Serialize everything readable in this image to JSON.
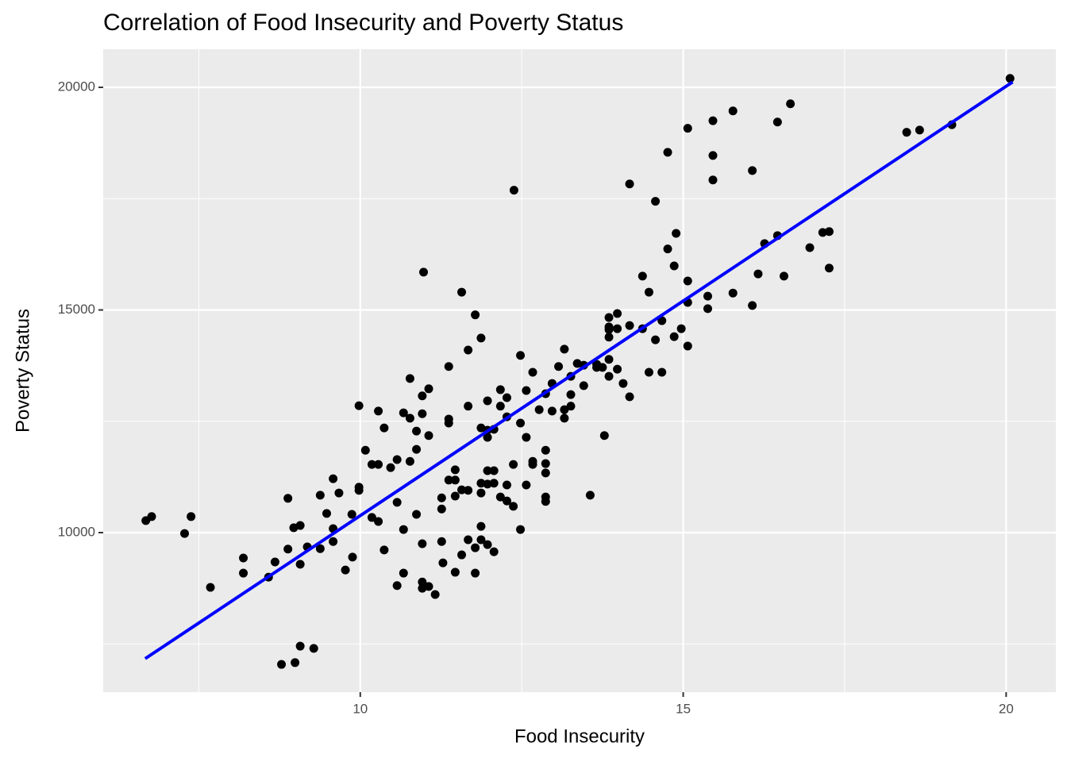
{
  "chart_data": {
    "type": "scatter",
    "title": "Correlation of Food Insecurity and Poverty Status",
    "x_label": "Food Insecurity",
    "y_label": "Poverty Status",
    "xlim": [
      6.02,
      20.77
    ],
    "ylim": [
      6417,
      20856
    ],
    "xticks": [
      10,
      15,
      20
    ],
    "yticks": [
      10000,
      15000,
      20000
    ],
    "x_minor_ticks": [
      7.5,
      12.5,
      17.5
    ],
    "y_minor_ticks": [
      7500,
      12500,
      17500
    ],
    "grid": true,
    "color": "#000000",
    "x": [
      6.68,
      6.77,
      7.28,
      7.38,
      7.68,
      8.19,
      8.19,
      8.58,
      8.68,
      8.78,
      8.88,
      8.88,
      8.97,
      8.99,
      9.07,
      9.07,
      9.07,
      9.18,
      9.28,
      9.38,
      9.38,
      9.48,
      9.58,
      9.58,
      9.58,
      9.67,
      9.77,
      9.87,
      9.88,
      9.98,
      9.98,
      9.98,
      10.08,
      10.18,
      10.18,
      10.28,
      10.28,
      10.28,
      10.37,
      10.37,
      10.47,
      10.57,
      10.57,
      10.57,
      10.67,
      10.67,
      10.67,
      10.77,
      10.77,
      10.77,
      10.87,
      10.87,
      10.87,
      10.96,
      10.96,
      10.96,
      10.96,
      10.96,
      10.98,
      11.06,
      11.06,
      11.06,
      11.16,
      11.26,
      11.26,
      11.26,
      11.28,
      11.37,
      11.37,
      11.37,
      11.37,
      11.47,
      11.47,
      11.47,
      11.47,
      11.57,
      11.57,
      11.57,
      11.67,
      11.67,
      11.67,
      11.67,
      11.78,
      11.78,
      11.78,
      11.87,
      11.87,
      11.87,
      11.87,
      11.87,
      11.87,
      11.97,
      11.97,
      11.97,
      11.97,
      11.97,
      11.97,
      12.07,
      12.07,
      12.07,
      12.07,
      12.17,
      12.17,
      12.17,
      12.27,
      12.27,
      12.27,
      12.27,
      12.37,
      12.37,
      12.38,
      12.48,
      12.48,
      12.48,
      12.57,
      12.57,
      12.57,
      12.67,
      12.67,
      12.67,
      12.77,
      12.87,
      12.87,
      12.87,
      12.87,
      12.87,
      12.87,
      12.97,
      12.97,
      13.07,
      13.16,
      13.16,
      13.16,
      13.26,
      13.26,
      13.26,
      13.36,
      13.46,
      13.46,
      13.56,
      13.66,
      13.66,
      13.75,
      13.78,
      13.85,
      13.85,
      13.85,
      13.85,
      13.85,
      13.85,
      13.98,
      13.98,
      13.98,
      14.07,
      14.17,
      14.17,
      14.17,
      14.37,
      14.37,
      14.47,
      14.47,
      14.57,
      14.57,
      14.67,
      14.67,
      14.76,
      14.76,
      14.86,
      14.86,
      14.89,
      14.97,
      15.07,
      15.07,
      15.07,
      15.07,
      15.38,
      15.38,
      15.46,
      15.46,
      15.46,
      15.77,
      15.77,
      16.07,
      16.07,
      16.16,
      16.26,
      16.46,
      16.46,
      16.56,
      16.66,
      16.96,
      17.16,
      17.26,
      17.26,
      18.46,
      18.66,
      19.16,
      20.06
    ],
    "values": [
      10270,
      10360,
      9980,
      10360,
      8770,
      9430,
      9090,
      9000,
      9340,
      7040,
      10770,
      9630,
      10110,
      7080,
      10160,
      9290,
      7450,
      9680,
      7400,
      10840,
      9640,
      10430,
      11210,
      9800,
      10090,
      10890,
      9160,
      10410,
      9450,
      11020,
      12850,
      10950,
      11850,
      11530,
      10340,
      12730,
      11530,
      10250,
      12350,
      9610,
      11460,
      11640,
      10680,
      8810,
      10070,
      9090,
      12690,
      13460,
      12570,
      11600,
      11870,
      12280,
      10410,
      13070,
      12670,
      9750,
      8890,
      8750,
      15850,
      13230,
      12180,
      8790,
      8610,
      10780,
      10530,
      9800,
      9320,
      13730,
      12550,
      12460,
      11180,
      11410,
      11180,
      10820,
      9110,
      15400,
      10960,
      9500,
      14100,
      12840,
      10950,
      9840,
      9660,
      9090,
      14890,
      14370,
      12350,
      11110,
      10890,
      10140,
      9840,
      12960,
      12140,
      11090,
      11390,
      12300,
      9730,
      11110,
      11390,
      12320,
      9570,
      13210,
      12840,
      10800,
      13030,
      12600,
      11070,
      10710,
      11530,
      10590,
      17690,
      13980,
      12460,
      10070,
      13190,
      12140,
      11070,
      13600,
      11600,
      11530,
      12760,
      11850,
      11550,
      11340,
      10800,
      10700,
      13120,
      13350,
      12730,
      13730,
      14120,
      12760,
      12570,
      13510,
      13100,
      12840,
      13800,
      13300,
      13760,
      10840,
      13780,
      13710,
      13710,
      12180,
      13890,
      13510,
      14560,
      14390,
      14830,
      14620,
      14580,
      14920,
      13670,
      13350,
      17830,
      14650,
      13050,
      15760,
      14580,
      15400,
      13600,
      14330,
      17440,
      14760,
      13600,
      16370,
      18540,
      14400,
      15990,
      16720,
      14580,
      15650,
      15170,
      14190,
      19080,
      15030,
      15310,
      19250,
      18470,
      17920,
      19470,
      15380,
      15100,
      18130,
      15810,
      16490,
      19220,
      16670,
      15760,
      19630,
      16400,
      16740,
      16760,
      15940,
      18990,
      19040,
      19160,
      20200
    ],
    "trend_line": {
      "x": [
        6.67,
        20.1
      ],
      "values": [
        7170,
        20120
      ],
      "color": "#0000ff"
    }
  }
}
